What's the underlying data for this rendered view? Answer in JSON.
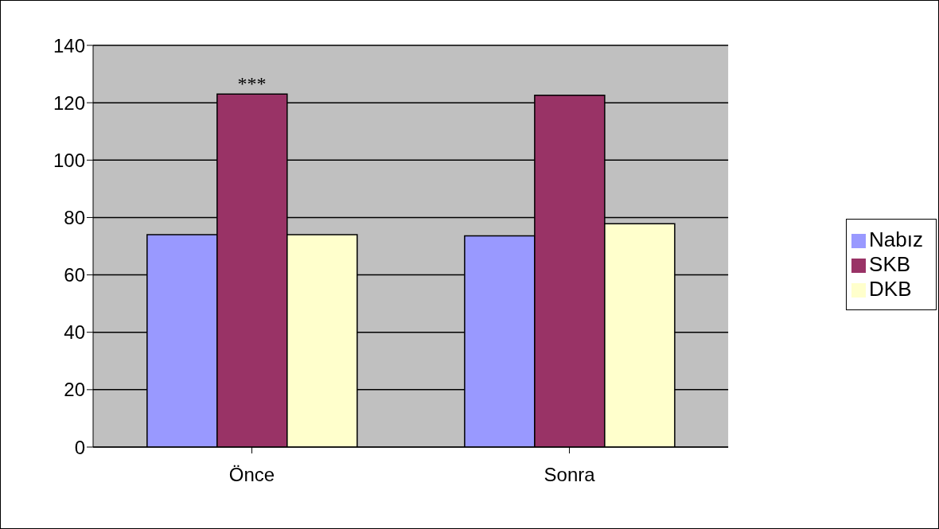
{
  "chart_data": {
    "type": "bar",
    "categories": [
      "Önce",
      "Sonra"
    ],
    "series": [
      {
        "name": "Nabız",
        "color": "#9999ff",
        "values": [
          74,
          73.6
        ]
      },
      {
        "name": "SKB",
        "color": "#993366",
        "values": [
          123,
          122.6
        ]
      },
      {
        "name": "DKB",
        "color": "#ffffcc",
        "values": [
          74,
          77.8
        ]
      }
    ],
    "ylim": [
      0,
      140
    ],
    "yticks": [
      0,
      20,
      40,
      60,
      80,
      100,
      120,
      140
    ],
    "grid": "y",
    "legend": "right",
    "annotations": [
      {
        "text": "***",
        "x": "Önce",
        "y": 123
      }
    ]
  }
}
